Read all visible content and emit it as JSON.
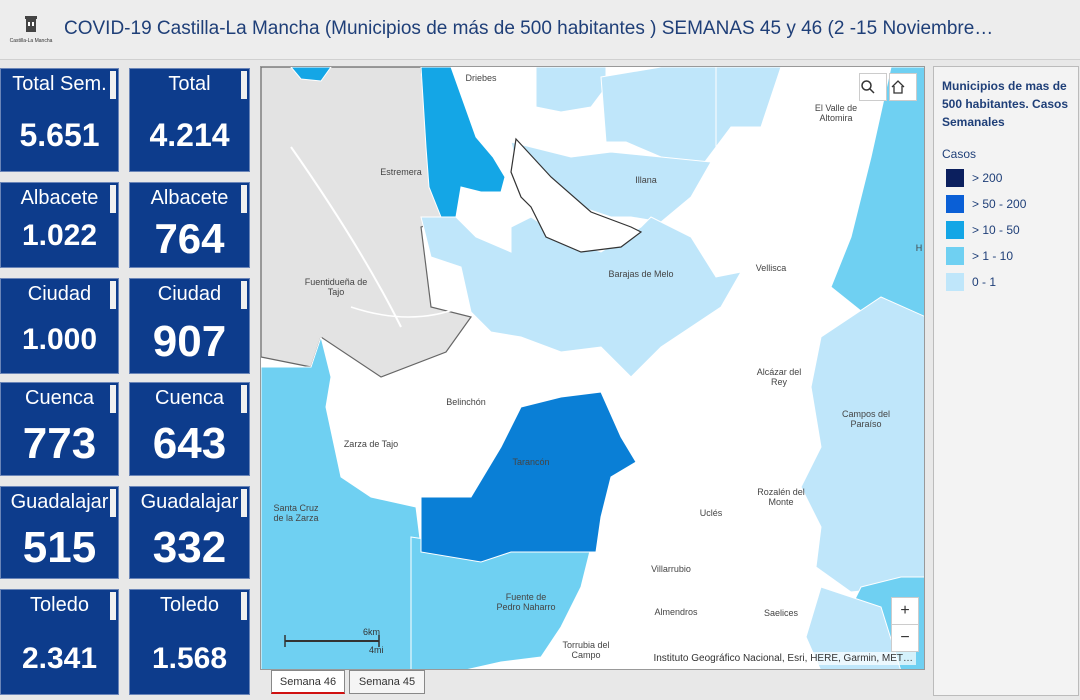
{
  "header": {
    "logo_text": "Castilla-La Mancha",
    "title": "COVID-19 Castilla-La Mancha (Municipios de más de 500 habitantes ) SEMANAS 45 y 46 (2 -15 Noviembre…"
  },
  "tiles": [
    {
      "label": "Total Sem.",
      "value": "5.651"
    },
    {
      "label": "Total",
      "value": "4.214"
    },
    {
      "label": "Albacete",
      "value": "1.022"
    },
    {
      "label": "Albacete",
      "value": "764"
    },
    {
      "label": "Ciudad",
      "value": "1.000"
    },
    {
      "label": "Ciudad",
      "value": "907"
    },
    {
      "label": "Cuenca",
      "value": "773"
    },
    {
      "label": "Cuenca",
      "value": "643"
    },
    {
      "label": "Guadalajar",
      "value": "515"
    },
    {
      "label": "Guadalajar",
      "value": "332"
    },
    {
      "label": "Toledo",
      "value": "2.341"
    },
    {
      "label": "Toledo",
      "value": "1.568"
    }
  ],
  "map": {
    "places": [
      "Driebes",
      "El Valle de Altomira",
      "Estremera",
      "Illana",
      "Barajas de Melo",
      "Vellisca",
      "Fuentidueña de Tajo",
      "Alcázar del Rey",
      "Belinchón",
      "Campos del Paraíso",
      "Zarza de Tajo",
      "Tarancón",
      "Rozalén del Monte",
      "Uclés",
      "Santa Cruz de la Zarza",
      "Villarrubio",
      "Fuente de Pedro Naharro",
      "Almendros",
      "Saelices",
      "Torrubia del Campo"
    ],
    "attribution": "Instituto Geográfico Nacional, Esri, HERE, Garmin, MET…",
    "scale_km": "6km",
    "scale_mi": "4mi",
    "zoom_in": "+",
    "zoom_out": "−",
    "edge_label": "H"
  },
  "tabs": {
    "active": "Semana 46",
    "other": "Semana 45"
  },
  "legend": {
    "title": "Municipios de mas de 500 habitantes. Casos Semanales",
    "subtitle": "Casos",
    "items": [
      {
        "label": "> 200",
        "color": "#0b1f5e"
      },
      {
        "label": "> 50 - 200",
        "color": "#0a5fd6"
      },
      {
        "label": "> 10 - 50",
        "color": "#14a6e6"
      },
      {
        "label": "> 1 - 10",
        "color": "#6fd0f2"
      },
      {
        "label": "0 - 1",
        "color": "#bfe6fa"
      }
    ]
  }
}
